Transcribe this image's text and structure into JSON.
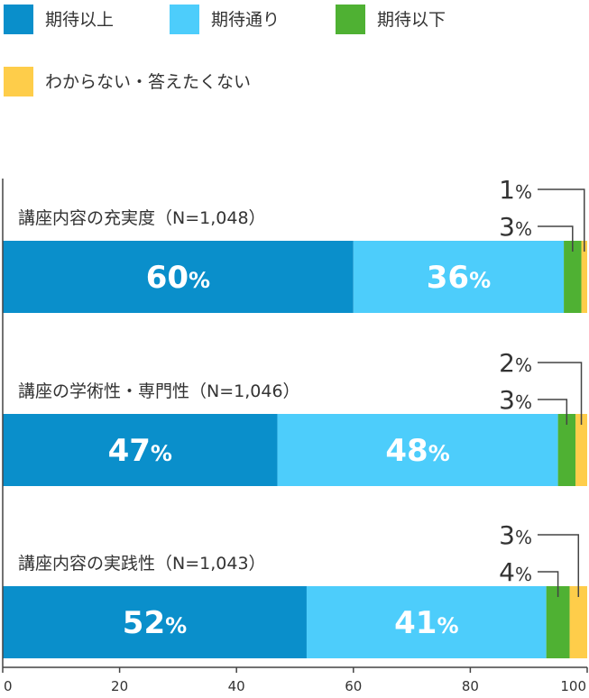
{
  "chart_data": {
    "type": "bar",
    "orientation": "horizontal",
    "stacked": true,
    "percent_symbol": "%",
    "legend": [
      {
        "name": "期待以上",
        "color": "#0a8fcb"
      },
      {
        "name": "期待通り",
        "color": "#4dcdfb"
      },
      {
        "name": "期待以下",
        "color": "#4fb133"
      },
      {
        "name": "わからない・答えたくない",
        "color": "#fecd4a"
      }
    ],
    "categories": [
      "講座内容の充実度（N=1,048）",
      "講座の学術性・専門性（N=1,046）",
      "講座内容の実践性（N=1,043）"
    ],
    "series": [
      {
        "name": "期待以上",
        "values": [
          60,
          47,
          52
        ]
      },
      {
        "name": "期待通り",
        "values": [
          36,
          48,
          41
        ]
      },
      {
        "name": "期待以下",
        "values": [
          3,
          3,
          4
        ]
      },
      {
        "name": "わからない・答えたくない",
        "values": [
          1,
          2,
          3
        ]
      }
    ],
    "xlim": [
      0,
      100
    ],
    "xticks": [
      0,
      20,
      40,
      60,
      80,
      100
    ],
    "legend_position": "top"
  }
}
